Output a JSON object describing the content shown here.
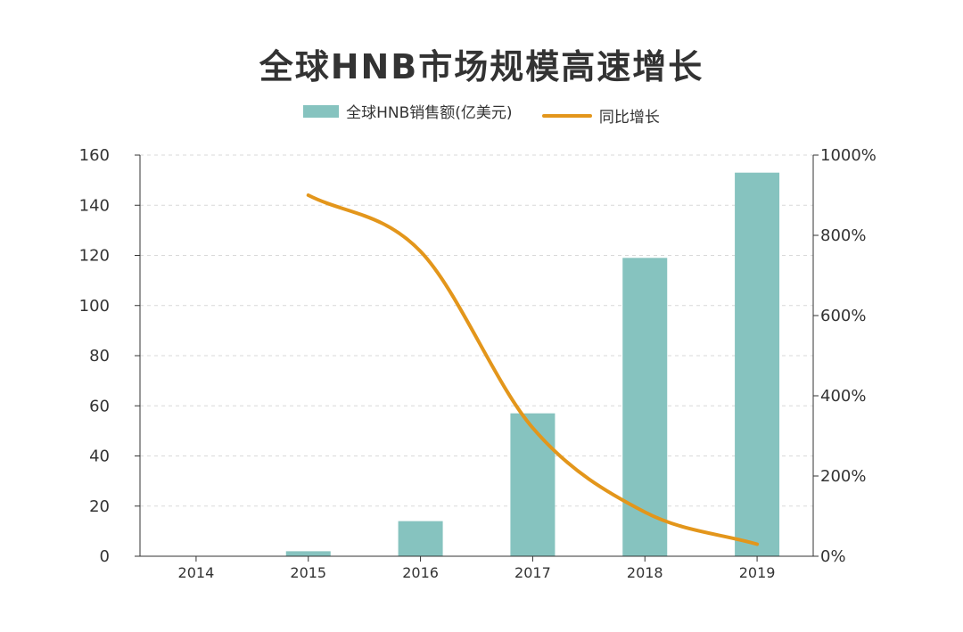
{
  "chart_data": {
    "type": "bar",
    "title": "全球HNB市场规模高速增长",
    "categories": [
      "2014",
      "2015",
      "2016",
      "2017",
      "2018",
      "2019"
    ],
    "series": [
      {
        "name": "全球HNB销售额(亿美元)",
        "type": "bar",
        "axis": "left",
        "color": "#86c3bf",
        "values": [
          0,
          2,
          14,
          57,
          119,
          153
        ]
      },
      {
        "name": "同比增长",
        "type": "line",
        "axis": "right",
        "color": "#e3961b",
        "values": [
          null,
          900,
          760,
          320,
          110,
          30
        ]
      }
    ],
    "y_left": {
      "ylim": [
        0,
        160
      ],
      "ticks": [
        0,
        20,
        40,
        60,
        80,
        100,
        120,
        140,
        160
      ]
    },
    "y_right": {
      "ylim": [
        0,
        1000
      ],
      "ticks": [
        "0%",
        "200%",
        "400%",
        "600%",
        "800%",
        "1000%"
      ]
    },
    "grid": true,
    "legend_position": "top"
  }
}
